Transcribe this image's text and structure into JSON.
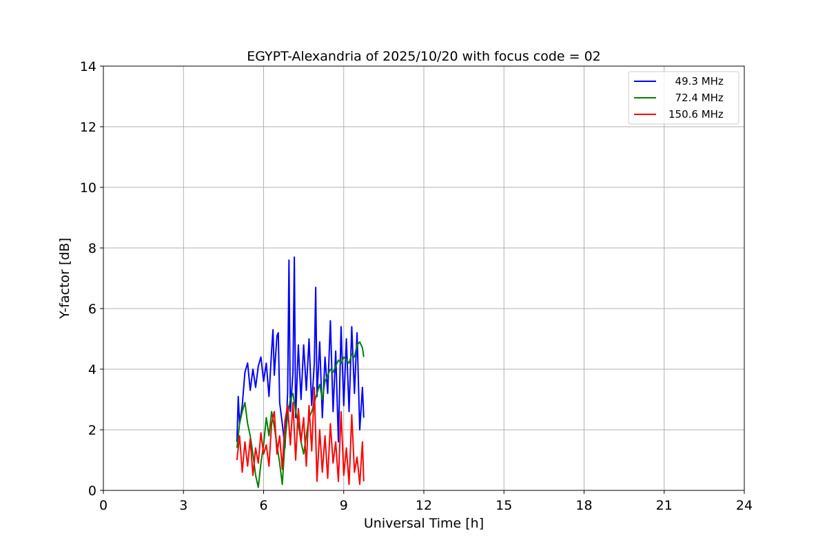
{
  "chart_data": {
    "type": "line",
    "title": "EGYPT-Alexandria of 2025/10/20 with focus code = 02",
    "xlabel": "Universal Time [h]",
    "ylabel": "Y-factor [dB]",
    "xlim": [
      0,
      24
    ],
    "ylim": [
      0,
      14
    ],
    "xticks": [
      0,
      3,
      6,
      9,
      12,
      15,
      18,
      21,
      24
    ],
    "yticks": [
      0,
      2,
      4,
      6,
      8,
      10,
      12,
      14
    ],
    "grid": true,
    "legend_position": "top-right",
    "series": [
      {
        "name": "  49.3 MHz",
        "color": "#0000ff",
        "points": [
          [
            5.0,
            1.6
          ],
          [
            5.05,
            3.1
          ],
          [
            5.1,
            2.2
          ],
          [
            5.2,
            2.8
          ],
          [
            5.3,
            3.9
          ],
          [
            5.4,
            4.2
          ],
          [
            5.5,
            3.3
          ],
          [
            5.6,
            4.0
          ],
          [
            5.7,
            3.4
          ],
          [
            5.8,
            4.1
          ],
          [
            5.9,
            4.4
          ],
          [
            6.0,
            3.6
          ],
          [
            6.1,
            4.2
          ],
          [
            6.2,
            3.1
          ],
          [
            6.3,
            4.6
          ],
          [
            6.35,
            5.3
          ],
          [
            6.4,
            3.8
          ],
          [
            6.5,
            5.1
          ],
          [
            6.55,
            5.2
          ],
          [
            6.6,
            2.9
          ],
          [
            6.7,
            2.2
          ],
          [
            6.8,
            1.4
          ],
          [
            6.9,
            3.2
          ],
          [
            6.95,
            7.6
          ],
          [
            7.0,
            2.6
          ],
          [
            7.1,
            3.9
          ],
          [
            7.15,
            7.7
          ],
          [
            7.2,
            2.4
          ],
          [
            7.3,
            4.8
          ],
          [
            7.4,
            3.0
          ],
          [
            7.5,
            4.8
          ],
          [
            7.6,
            3.3
          ],
          [
            7.7,
            5.0
          ],
          [
            7.8,
            2.8
          ],
          [
            7.9,
            4.2
          ],
          [
            7.95,
            6.7
          ],
          [
            8.0,
            3.1
          ],
          [
            8.1,
            4.9
          ],
          [
            8.2,
            2.4
          ],
          [
            8.3,
            4.4
          ],
          [
            8.4,
            3.2
          ],
          [
            8.5,
            5.6
          ],
          [
            8.6,
            2.6
          ],
          [
            8.7,
            4.6
          ],
          [
            8.8,
            1.6
          ],
          [
            8.9,
            5.4
          ],
          [
            9.0,
            2.8
          ],
          [
            9.1,
            5.0
          ],
          [
            9.2,
            2.6
          ],
          [
            9.3,
            5.4
          ],
          [
            9.4,
            3.2
          ],
          [
            9.5,
            5.2
          ],
          [
            9.6,
            2.0
          ],
          [
            9.7,
            3.4
          ],
          [
            9.75,
            2.4
          ]
        ]
      },
      {
        "name": "  72.4 MHz",
        "color": "#008000",
        "points": [
          [
            5.0,
            1.4
          ],
          [
            5.1,
            2.2
          ],
          [
            5.2,
            2.6
          ],
          [
            5.3,
            2.9
          ],
          [
            5.4,
            2.2
          ],
          [
            5.5,
            1.8
          ],
          [
            5.6,
            1.2
          ],
          [
            5.7,
            0.5
          ],
          [
            5.8,
            0.1
          ],
          [
            5.9,
            0.9
          ],
          [
            6.0,
            1.5
          ],
          [
            6.1,
            2.4
          ],
          [
            6.2,
            1.8
          ],
          [
            6.3,
            2.6
          ],
          [
            6.4,
            2.1
          ],
          [
            6.5,
            1.5
          ],
          [
            6.6,
            0.9
          ],
          [
            6.7,
            0.2
          ],
          [
            6.8,
            1.6
          ],
          [
            6.9,
            2.5
          ],
          [
            7.0,
            3.0
          ],
          [
            7.1,
            3.2
          ],
          [
            7.2,
            2.6
          ],
          [
            7.3,
            2.2
          ],
          [
            7.4,
            1.6
          ],
          [
            7.5,
            1.2
          ],
          [
            7.6,
            1.8
          ],
          [
            7.7,
            2.4
          ],
          [
            7.8,
            2.6
          ],
          [
            7.9,
            2.9
          ],
          [
            8.0,
            3.2
          ],
          [
            8.1,
            3.5
          ],
          [
            8.2,
            3.0
          ],
          [
            8.3,
            3.6
          ],
          [
            8.4,
            3.8
          ],
          [
            8.5,
            4.0
          ],
          [
            8.6,
            3.9
          ],
          [
            8.7,
            4.1
          ],
          [
            8.8,
            4.3
          ],
          [
            8.9,
            4.2
          ],
          [
            9.0,
            4.4
          ],
          [
            9.1,
            4.3
          ],
          [
            9.2,
            4.2
          ],
          [
            9.3,
            4.5
          ],
          [
            9.4,
            4.4
          ],
          [
            9.5,
            4.8
          ],
          [
            9.6,
            4.9
          ],
          [
            9.7,
            4.7
          ],
          [
            9.75,
            4.4
          ]
        ]
      },
      {
        "name": "150.6 MHz",
        "color": "#ff0000",
        "points": [
          [
            5.0,
            1.0
          ],
          [
            5.1,
            1.8
          ],
          [
            5.2,
            0.6
          ],
          [
            5.3,
            1.6
          ],
          [
            5.4,
            0.8
          ],
          [
            5.5,
            1.7
          ],
          [
            5.6,
            0.5
          ],
          [
            5.7,
            1.4
          ],
          [
            5.8,
            0.9
          ],
          [
            5.9,
            1.9
          ],
          [
            6.0,
            1.2
          ],
          [
            6.1,
            1.5
          ],
          [
            6.2,
            0.8
          ],
          [
            6.3,
            2.2
          ],
          [
            6.4,
            2.6
          ],
          [
            6.5,
            1.2
          ],
          [
            6.6,
            1.8
          ],
          [
            6.7,
            0.7
          ],
          [
            6.8,
            2.3
          ],
          [
            6.9,
            2.8
          ],
          [
            7.0,
            1.5
          ],
          [
            7.1,
            2.9
          ],
          [
            7.2,
            1.0
          ],
          [
            7.3,
            2.7
          ],
          [
            7.4,
            1.6
          ],
          [
            7.5,
            2.4
          ],
          [
            7.6,
            0.8
          ],
          [
            7.7,
            2.8
          ],
          [
            7.8,
            1.3
          ],
          [
            7.9,
            3.4
          ],
          [
            8.0,
            0.3
          ],
          [
            8.1,
            2.0
          ],
          [
            8.2,
            0.6
          ],
          [
            8.3,
            1.8
          ],
          [
            8.4,
            0.4
          ],
          [
            8.5,
            2.2
          ],
          [
            8.6,
            0.9
          ],
          [
            8.7,
            1.6
          ],
          [
            8.8,
            0.3
          ],
          [
            8.9,
            2.6
          ],
          [
            9.0,
            0.5
          ],
          [
            9.1,
            1.4
          ],
          [
            9.2,
            0.2
          ],
          [
            9.3,
            2.5
          ],
          [
            9.4,
            0.6
          ],
          [
            9.5,
            1.1
          ],
          [
            9.6,
            0.2
          ],
          [
            9.7,
            1.6
          ],
          [
            9.75,
            0.3
          ]
        ]
      }
    ]
  }
}
